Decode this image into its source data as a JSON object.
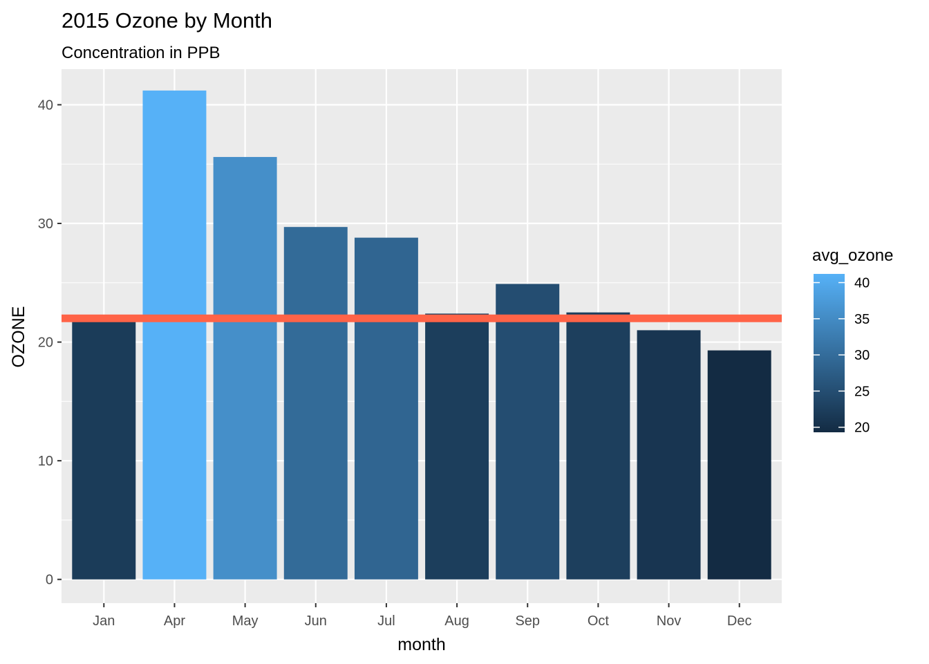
{
  "chart_data": {
    "type": "bar",
    "title": "2015 Ozone by Month",
    "subtitle": "Concentration in PPB",
    "xlabel": "month",
    "ylabel": "OZONE",
    "categories": [
      "Jan",
      "Apr",
      "May",
      "Jun",
      "Jul",
      "Aug",
      "Sep",
      "Oct",
      "Nov",
      "Dec"
    ],
    "values": [
      22.0,
      41.2,
      35.6,
      29.7,
      28.8,
      22.4,
      24.9,
      22.5,
      21.0,
      19.3
    ],
    "ylim": [
      -2,
      43
    ],
    "yticks": [
      0,
      10,
      20,
      30,
      40
    ],
    "reference_line": {
      "y": 22,
      "color": "#ff6347"
    },
    "grid": true,
    "panel_background": "#ebebeb",
    "legend": {
      "title": "avg_ozone",
      "position": "right",
      "type": "colorbar",
      "range": [
        19.3,
        41.2
      ],
      "low_color": "#132b43",
      "high_color": "#56b1f7",
      "breaks": [
        20,
        25,
        30,
        35,
        40
      ]
    }
  }
}
